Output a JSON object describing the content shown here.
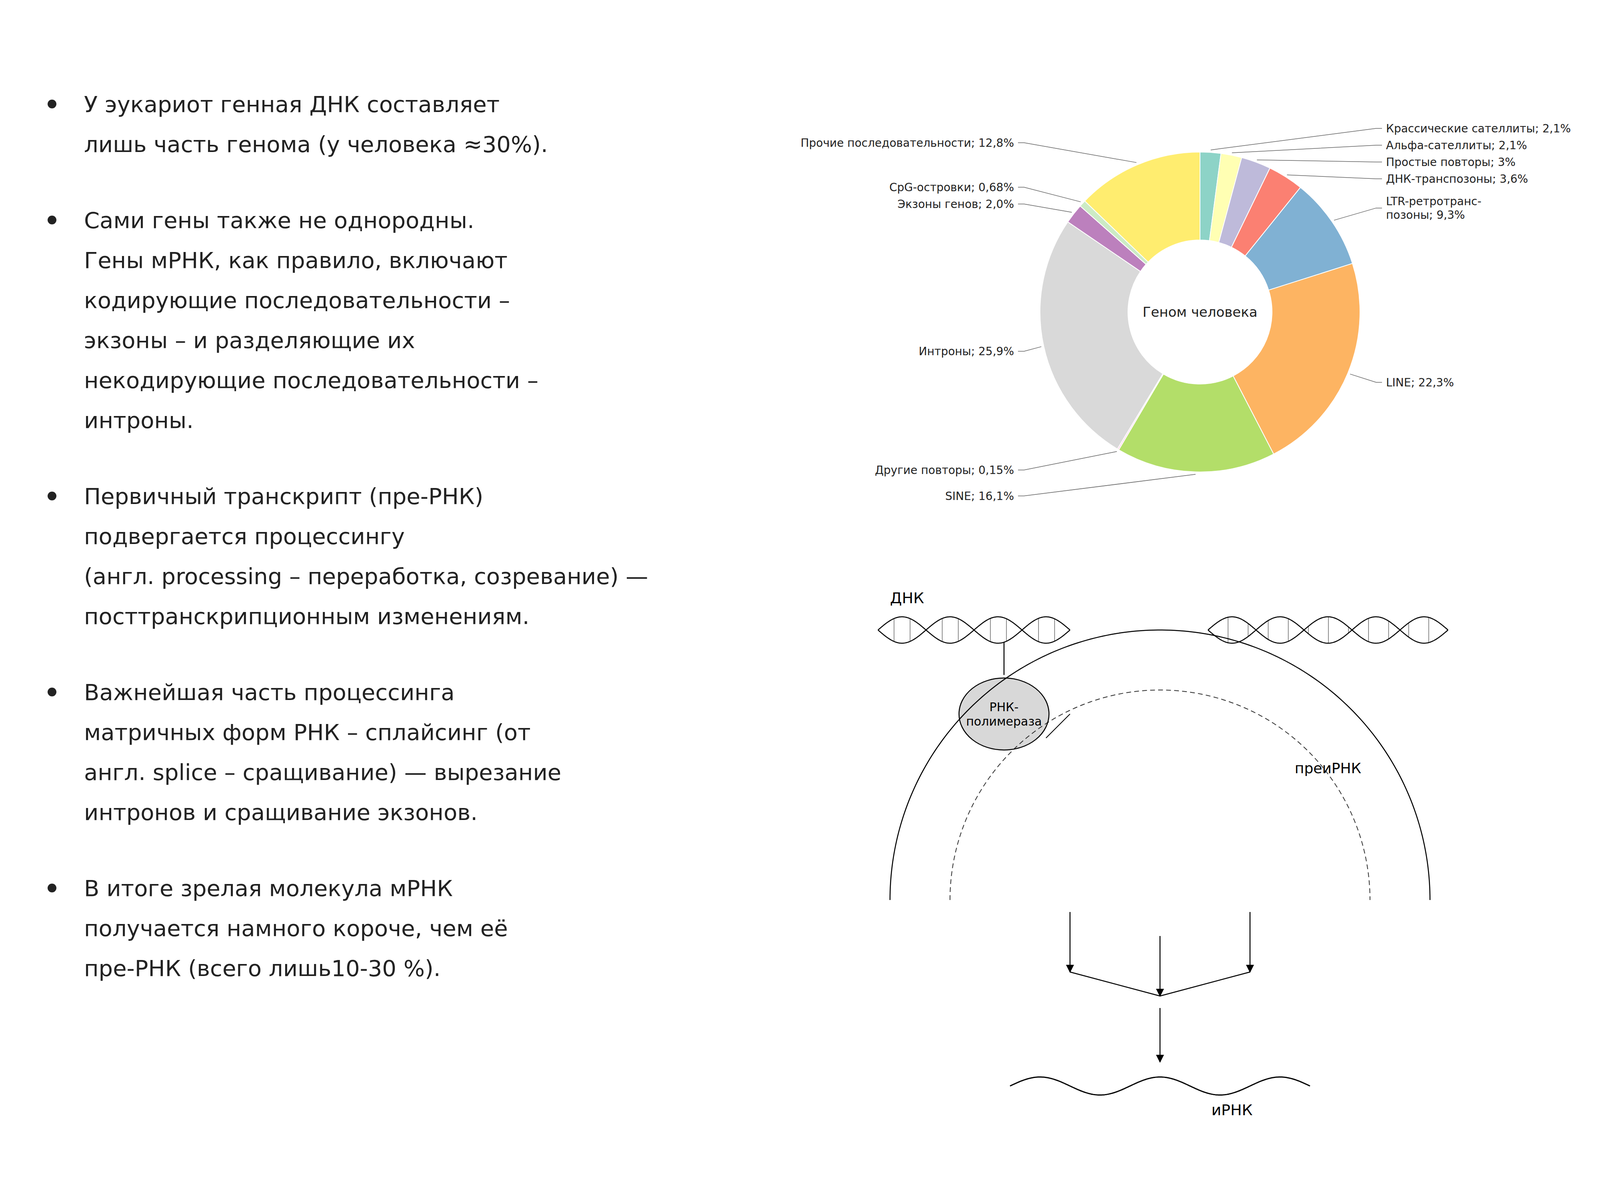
{
  "chart_data": {
    "type": "pie",
    "title": "Геном человека",
    "categories": [
      "Крассические сателлиты; 2,1%",
      "Альфа-сателлиты; 2,1%",
      "Простые повторы; 3%",
      "ДНК-транспозоны; 3,6%",
      "LTR-ретротранс-\nпозоны; 9,3%",
      "LINE; 22,3%",
      "SINE; 16,1%",
      "Другие повторы; 0,15%",
      "Интроны; 25,9%",
      "Экзоны генов; 2,0%",
      "CpG-островки; 0,68%",
      "Прочие последовательности; 12,8%"
    ],
    "values": [
      2.1,
      2.1,
      3.0,
      3.6,
      9.3,
      22.3,
      16.1,
      0.15,
      25.9,
      2.0,
      0.68,
      12.8
    ],
    "annotations": [
      "У эукариот генная ДНК составляет\nлишь часть генома (у человека ≈30%).",
      "Сами гены также не однородны.\nГены мРНК, как правило, включают\nкодирующие последовательности –\nэкзоны – и разделяющие их\nнекодирующие последовательности –\nинтроны.",
      "Первичный транскрипт (пре-РНК)\nподвергается процессингу\n(англ. processing – переработка, созревание) —\nпосттранскрипционным изменениям.",
      "Важнейшая часть процессинга\nматричных форм РНК – сплайсинг (от\nангл. splice – сращивание) — вырезание\nинтронов и сращивание экзонов.",
      "В итоге зрелая молекула мРНК\nполучается намного короче, чем её\nпре-РНК (всего лишь10-30 %).",
      "ДНК",
      "РНК-\nполимераза",
      "преиРНК",
      "иРНК"
    ]
  }
}
